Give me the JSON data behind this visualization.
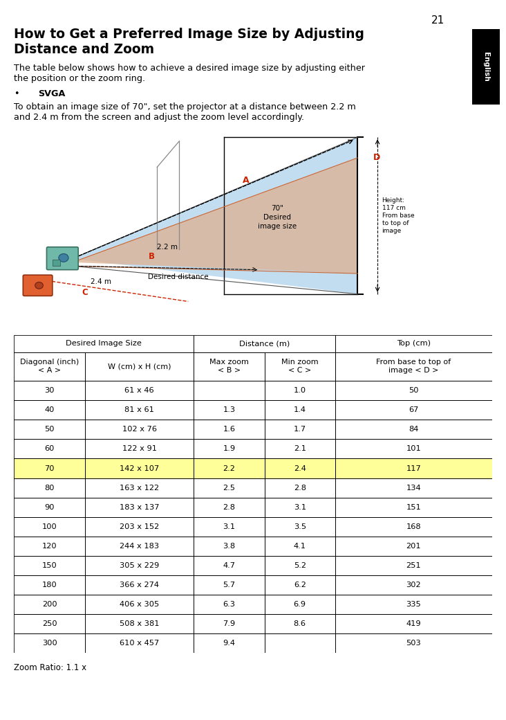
{
  "page_number": "21",
  "title_line1": "How to Get a Preferred Image Size by Adjusting",
  "title_line2": "Distance and Zoom",
  "desc": "The table below shows how to achieve a desired image size by adjusting either\nthe position or the zoom ring.",
  "bullet_header": "SVGA",
  "bullet_text": "To obtain an image size of 70\", set the projector at a distance between 2.2 m\nand 2.4 m from the screen and adjust the zoom level accordingly.",
  "zoom_ratio": "Zoom Ratio: 1.1 x",
  "english_tab_color": "#000000",
  "english_tab_text": "English",
  "table_data": [
    [
      "30",
      "61 x 46",
      "",
      "1.0",
      "50"
    ],
    [
      "40",
      "81 x 61",
      "1.3",
      "1.4",
      "67"
    ],
    [
      "50",
      "102 x 76",
      "1.6",
      "1.7",
      "84"
    ],
    [
      "60",
      "122 x 91",
      "1.9",
      "2.1",
      "101"
    ],
    [
      "70",
      "142 x 107",
      "2.2",
      "2.4",
      "117"
    ],
    [
      "80",
      "163 x 122",
      "2.5",
      "2.8",
      "134"
    ],
    [
      "90",
      "183 x 137",
      "2.8",
      "3.1",
      "151"
    ],
    [
      "100",
      "203 x 152",
      "3.1",
      "3.5",
      "168"
    ],
    [
      "120",
      "244 x 183",
      "3.8",
      "4.1",
      "201"
    ],
    [
      "150",
      "305 x 229",
      "4.7",
      "5.2",
      "251"
    ],
    [
      "180",
      "366 x 274",
      "5.7",
      "6.2",
      "302"
    ],
    [
      "200",
      "406 x 305",
      "6.3",
      "6.9",
      "335"
    ],
    [
      "250",
      "508 x 381",
      "7.9",
      "8.6",
      "419"
    ],
    [
      "300",
      "610 x 457",
      "9.4",
      "",
      "503"
    ]
  ],
  "highlighted_row": 4,
  "highlight_color": "#ffff99",
  "bg_color": "#ffffff"
}
